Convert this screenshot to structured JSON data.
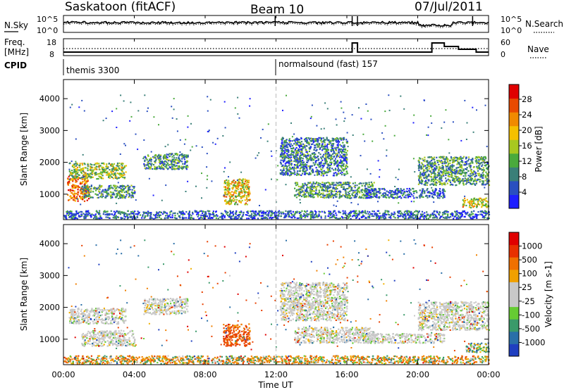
{
  "header": {
    "station": "Saskatoon (fitACF)",
    "beam": "Beam 10",
    "date": "07/Jul/2011"
  },
  "strip": {
    "nsky_label": "N.Sky",
    "freq_label": "Freq.",
    "freq_unit": "[MHz]",
    "cpid_label": "CPID",
    "nsearch_label": "N.Search",
    "nave_label": "Nave",
    "noise_ticks": [
      "10^5",
      "10^0"
    ],
    "freq_ticks": [
      "18",
      "8"
    ],
    "nave_ticks": [
      "60",
      "0"
    ]
  },
  "cpid": {
    "segments": [
      {
        "label": "themis 3300",
        "start_hour": 0
      },
      {
        "label": "normalsound (fast) 157",
        "start_hour": 12
      }
    ]
  },
  "xaxis": {
    "label": "Time UT",
    "ticks": [
      "00:00",
      "04:00",
      "08:00",
      "12:00",
      "16:00",
      "20:00",
      "00:00"
    ]
  },
  "chart_data": [
    {
      "type": "heatmap",
      "panel": "power",
      "ylabel": "Slant Range [km]",
      "yticks": [
        1000,
        2000,
        3000,
        4000
      ],
      "ylim": [
        200,
        4600
      ],
      "xlim_hours": [
        0,
        24
      ],
      "colorbar": {
        "label": "Power [dB]",
        "ticks": [
          4,
          8,
          12,
          16,
          20,
          24,
          28
        ],
        "colors": [
          "#1f1fff",
          "#2a4fc0",
          "#3a7f78",
          "#4aaa3c",
          "#a8c820",
          "#f5c000",
          "#f08a00",
          "#e84a00",
          "#e00000"
        ]
      },
      "echo_regions": [
        {
          "t0": 0.2,
          "t1": 1.4,
          "r0": 800,
          "r1": 1600,
          "level": 26
        },
        {
          "t0": 0.3,
          "t1": 3.5,
          "r0": 1500,
          "r1": 2000,
          "level": 16
        },
        {
          "t0": 1.0,
          "t1": 4.0,
          "r0": 900,
          "r1": 1300,
          "level": 12
        },
        {
          "t0": 4.5,
          "t1": 7.0,
          "r0": 1800,
          "r1": 2300,
          "level": 12
        },
        {
          "t0": 9.0,
          "t1": 10.5,
          "r0": 700,
          "r1": 1500,
          "level": 20
        },
        {
          "t0": 12.2,
          "t1": 16.0,
          "r0": 1600,
          "r1": 2800,
          "level": 10
        },
        {
          "t0": 13.0,
          "t1": 17.5,
          "r0": 900,
          "r1": 1400,
          "level": 12
        },
        {
          "t0": 17.0,
          "t1": 21.5,
          "r0": 900,
          "r1": 1200,
          "level": 8
        },
        {
          "t0": 20.0,
          "t1": 24.0,
          "r0": 1300,
          "r1": 2200,
          "level": 12
        },
        {
          "t0": 22.5,
          "t1": 24.0,
          "r0": 600,
          "r1": 900,
          "level": 20
        },
        {
          "t0": 0.0,
          "t1": 24.0,
          "r0": 250,
          "r1": 500,
          "level": 8
        }
      ]
    },
    {
      "type": "heatmap",
      "panel": "velocity",
      "ylabel": "Slant Range [km]",
      "yticks": [
        1000,
        2000,
        3000,
        4000
      ],
      "ylim": [
        200,
        4600
      ],
      "xlim_hours": [
        0,
        24
      ],
      "colorbar": {
        "label": "Velocity [m s-1]",
        "ticks": [
          1000,
          500,
          100,
          25,
          -25,
          -100,
          -500,
          -1000
        ],
        "colors": [
          "#1f3fc0",
          "#2a6fa8",
          "#3a9a6a",
          "#66cc33",
          "#c8c8c8",
          "#c8c8c8",
          "#f0a000",
          "#f07000",
          "#e83000",
          "#e00000"
        ]
      },
      "echo_regions": [
        {
          "t0": 0.3,
          "t1": 3.5,
          "r0": 1500,
          "r1": 2000,
          "level": 0
        },
        {
          "t0": 1.0,
          "t1": 4.0,
          "r0": 800,
          "r1": 1300,
          "level": 0
        },
        {
          "t0": 4.5,
          "t1": 7.0,
          "r0": 1800,
          "r1": 2300,
          "level": 0
        },
        {
          "t0": 9.0,
          "t1": 10.5,
          "r0": 800,
          "r1": 1500,
          "level": -400
        },
        {
          "t0": 12.2,
          "t1": 16.0,
          "r0": 1600,
          "r1": 2800,
          "level": 0
        },
        {
          "t0": 13.0,
          "t1": 17.5,
          "r0": 900,
          "r1": 1400,
          "level": 0
        },
        {
          "t0": 17.0,
          "t1": 21.5,
          "r0": 900,
          "r1": 1200,
          "level": 0
        },
        {
          "t0": 20.0,
          "t1": 24.0,
          "r0": 1300,
          "r1": 2200,
          "level": 0
        },
        {
          "t0": 22.7,
          "t1": 24.0,
          "r0": 600,
          "r1": 900,
          "level": 150
        },
        {
          "t0": 0.0,
          "t1": 24.0,
          "r0": 250,
          "r1": 500,
          "level": -100
        }
      ]
    }
  ]
}
